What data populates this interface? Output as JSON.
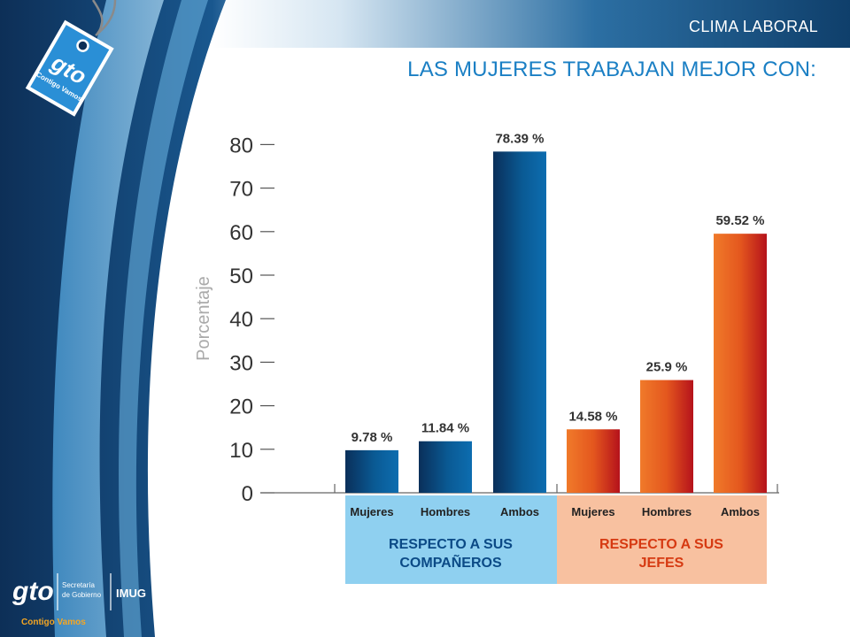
{
  "header": {
    "section_label": "CLIMA LABORAL",
    "title": "LAS MUJERES TRABAJAN MEJOR CON:"
  },
  "logo": {
    "tag_text": "gto",
    "tag_subtext": "Contigo Vamos",
    "footer_text": "gto",
    "footer_subtext": "Contigo Vamos",
    "footer_org_line1": "Secretaría",
    "footer_org_line2": "de Gobierno",
    "footer_org2": "IMUG"
  },
  "colors": {
    "blue_bar": "#0a5a94",
    "orange_bar": "#e4571e",
    "group1_bg": "#8fd0f0",
    "group2_bg": "#f8c1a0",
    "group1_text": "#0b4a86",
    "group2_text": "#d63a12",
    "title_blue": "#1a7fc4"
  },
  "chart_data": {
    "type": "bar",
    "ylabel": "Porcentaje",
    "ylim": [
      0,
      80
    ],
    "yticks": [
      0,
      10,
      20,
      30,
      40,
      50,
      60,
      70,
      80
    ],
    "categories": [
      "Mujeres",
      "Hombres",
      "Ambos",
      "Mujeres",
      "Hombres",
      "Ambos"
    ],
    "values": [
      9.78,
      11.84,
      78.39,
      14.58,
      25.9,
      59.52
    ],
    "value_labels": [
      "9.78 %",
      "11.84 %",
      "78.39 %",
      "14.58 %",
      "25.9 %",
      "59.52 %"
    ],
    "groups": [
      {
        "label_line1": "RESPECTO A SUS",
        "label_line2": "COMPAÑEROS"
      },
      {
        "label_line1": "RESPECTO A SUS",
        "label_line2": "JEFES"
      }
    ],
    "grid": false
  }
}
